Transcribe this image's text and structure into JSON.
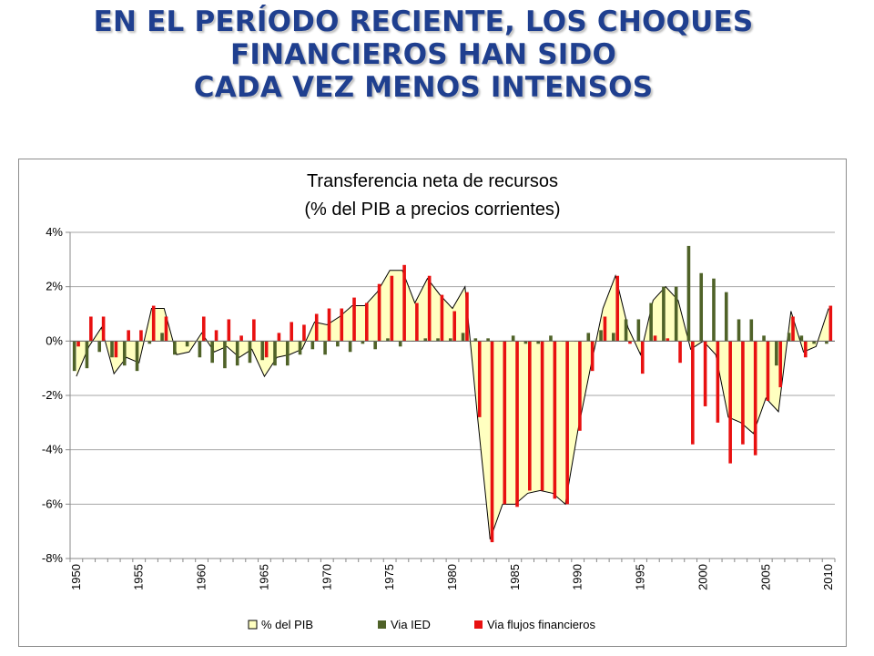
{
  "slide": {
    "title_lines": [
      "EN EL PERÍODO RECIENTE, LOS CHOQUES",
      "FINANCIEROS HAN SIDO",
      "CADA VEZ MENOS INTENSOS"
    ]
  },
  "colors": {
    "title": "#1f3f8f",
    "area_fill": "#ffffc0",
    "area_line": "#000000",
    "ied": "#4f6228",
    "flujos": "#e81010",
    "grid": "#a6a6a6"
  },
  "chart_data": {
    "type": "bar",
    "title": "Transferencia neta de recursos",
    "subtitle": "(% del PIB a precios corrientes)",
    "xlabel": "",
    "ylabel": "",
    "ylim": [
      -8,
      4
    ],
    "yticks": [
      4,
      2,
      0,
      -2,
      -4,
      -6,
      -8
    ],
    "ytick_labels": [
      "4%",
      "2%",
      "0%",
      "-2%",
      "-4%",
      "-6%",
      "-8%"
    ],
    "xtick_years": [
      1950,
      1955,
      1960,
      1965,
      1970,
      1975,
      1980,
      1985,
      1990,
      1995,
      2000,
      2005,
      2010
    ],
    "xtick_labels": [
      "1950",
      "1955",
      "1960",
      "1965",
      "1970",
      "1975",
      "1980",
      "1985",
      "1990",
      "1995",
      "2000",
      "2005",
      "2010"
    ],
    "legend_position": "bottom",
    "x": [
      1950,
      1951,
      1952,
      1953,
      1954,
      1955,
      1956,
      1957,
      1958,
      1959,
      1960,
      1961,
      1962,
      1963,
      1964,
      1965,
      1966,
      1967,
      1968,
      1969,
      1970,
      1971,
      1972,
      1973,
      1974,
      1975,
      1976,
      1977,
      1978,
      1979,
      1980,
      1981,
      1982,
      1983,
      1984,
      1985,
      1986,
      1987,
      1988,
      1989,
      1990,
      1991,
      1992,
      1993,
      1994,
      1995,
      1996,
      1997,
      1998,
      1999,
      2000,
      2001,
      2002,
      2003,
      2004,
      2005,
      2006,
      2007,
      2008,
      2009,
      2010
    ],
    "series": [
      {
        "name": "% del PIB",
        "kind": "area",
        "values": [
          -1.3,
          -0.2,
          0.5,
          -1.2,
          -0.6,
          -0.8,
          1.2,
          1.2,
          -0.5,
          -0.4,
          0.3,
          -0.4,
          -0.2,
          -0.6,
          -0.3,
          -1.3,
          -0.6,
          -0.5,
          -0.3,
          0.7,
          0.6,
          0.9,
          1.3,
          1.3,
          1.8,
          2.6,
          2.6,
          1.4,
          2.3,
          1.7,
          1.2,
          2.0,
          -2.8,
          -7.3,
          -6.0,
          -6.0,
          -5.6,
          -5.5,
          -5.6,
          -6.0,
          -3.3,
          -1.0,
          1.2,
          2.4,
          0.5,
          -0.5,
          1.5,
          2.0,
          1.5,
          -0.3,
          0.0,
          -0.5,
          -2.8,
          -3.0,
          -3.4,
          -2.1,
          -2.6,
          1.1,
          -0.4,
          -0.2,
          1.2
        ]
      },
      {
        "name": "Via IED",
        "kind": "bar",
        "values": [
          -1.1,
          -1.0,
          -0.4,
          -0.6,
          -0.9,
          -1.1,
          -0.1,
          0.3,
          -0.5,
          -0.2,
          -0.6,
          -0.8,
          -1.0,
          -0.9,
          -0.8,
          -0.7,
          -0.9,
          -0.9,
          -0.5,
          -0.3,
          -0.5,
          -0.2,
          -0.4,
          -0.1,
          -0.3,
          0.1,
          -0.2,
          0.0,
          0.1,
          0.1,
          0.1,
          0.3,
          0.1,
          0.1,
          0.0,
          0.2,
          -0.1,
          -0.1,
          0.2,
          0.0,
          0.0,
          0.3,
          0.4,
          0.3,
          0.8,
          0.8,
          1.4,
          2.0,
          2.0,
          3.5,
          2.5,
          2.3,
          1.8,
          0.8,
          0.8,
          0.2,
          -0.9,
          0.3,
          0.2,
          -0.1,
          -0.1
        ]
      },
      {
        "name": "Via flujos financieros",
        "kind": "bar",
        "values": [
          -0.2,
          0.9,
          0.9,
          -0.6,
          0.4,
          0.4,
          1.3,
          0.9,
          0.0,
          0.0,
          0.9,
          0.4,
          0.8,
          0.2,
          0.8,
          -0.6,
          0.3,
          0.7,
          0.6,
          1.0,
          1.2,
          1.2,
          1.6,
          1.4,
          2.1,
          2.4,
          2.8,
          1.4,
          2.4,
          1.7,
          1.1,
          1.8,
          -2.8,
          -7.4,
          -6.0,
          -6.1,
          -5.5,
          -5.5,
          -5.8,
          -6.0,
          -3.3,
          -1.1,
          0.9,
          2.4,
          -0.1,
          -1.2,
          0.2,
          0.1,
          -0.8,
          -3.8,
          -2.4,
          -3.0,
          -4.5,
          -3.8,
          -4.2,
          -2.2,
          -1.7,
          0.9,
          -0.6,
          0.0,
          1.3
        ]
      }
    ]
  }
}
